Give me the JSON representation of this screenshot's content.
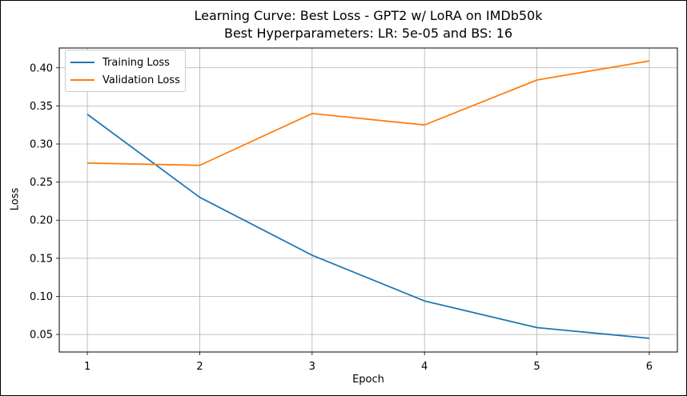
{
  "chart_data": {
    "type": "line",
    "title": "Learning Curve: Best Loss - GPT2 w/ LoRA on IMDb50k",
    "subtitle": "Best Hyperparameters: LR: 5e-05 and BS: 16",
    "xlabel": "Epoch",
    "ylabel": "Loss",
    "x": [
      1,
      2,
      3,
      4,
      5,
      6
    ],
    "xticks": [
      "1",
      "2",
      "3",
      "4",
      "5",
      "6"
    ],
    "yticks": [
      "0.05",
      "0.10",
      "0.15",
      "0.20",
      "0.25",
      "0.30",
      "0.35",
      "0.40"
    ],
    "xlim": [
      0.75,
      6.25
    ],
    "ylim": [
      0.027,
      0.426
    ],
    "grid": true,
    "legend_position": "top-left",
    "series": [
      {
        "name": "Training Loss",
        "color": "#1f77b4",
        "values": [
          0.339,
          0.23,
          0.154,
          0.094,
          0.059,
          0.045
        ]
      },
      {
        "name": "Validation Loss",
        "color": "#ff7f0e",
        "values": [
          0.275,
          0.272,
          0.34,
          0.325,
          0.384,
          0.409
        ]
      }
    ]
  }
}
